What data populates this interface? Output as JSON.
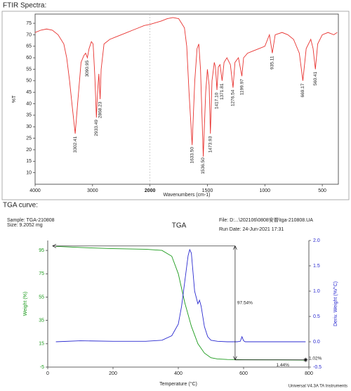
{
  "chart_data": [
    {
      "type": "line",
      "heading": "FTIR Spectra:",
      "xlabel": "Wavenumbers (cm-1)",
      "ylabel": "%T",
      "xlim": [
        4000,
        360
      ],
      "x_expand_below": 2000,
      "x_expand_factor": 2,
      "xticks": [
        4000,
        3000,
        2000,
        1500,
        1000,
        500
      ],
      "ylim": [
        5,
        79
      ],
      "yticks": [
        10,
        15,
        20,
        25,
        30,
        35,
        40,
        45,
        50,
        55,
        60,
        65,
        70,
        75
      ],
      "series": [
        {
          "color": "#e8322f",
          "x": [
            4000,
            3900,
            3800,
            3700,
            3600,
            3500,
            3450,
            3400,
            3350,
            3302,
            3260,
            3200,
            3150,
            3120,
            3090,
            3060,
            3020,
            2990,
            2960,
            2933,
            2910,
            2890,
            2868,
            2850,
            2800,
            2700,
            2600,
            2500,
            2400,
            2300,
            2200,
            2100,
            2000,
            1900,
            1850,
            1800,
            1750,
            1700,
            1680,
            1660,
            1633,
            1610,
            1590,
            1575,
            1560,
            1536,
            1515,
            1500,
            1485,
            1474,
            1460,
            1440,
            1430,
            1417,
            1405,
            1390,
            1372,
            1355,
            1330,
            1300,
            1277,
            1260,
            1230,
            1200,
            1185,
            1150,
            1100,
            1050,
            1000,
            960,
            935,
            910,
            850,
            800,
            750,
            700,
            669,
            640,
            600,
            580,
            560,
            540,
            500,
            450,
            400,
            370
          ],
          "values": [
            71,
            72,
            72.5,
            72,
            70,
            66,
            60,
            50,
            38,
            27,
            40,
            58,
            61,
            62,
            60,
            64,
            67,
            66,
            52,
            34,
            46,
            53,
            42,
            55,
            66,
            68,
            69,
            70,
            71,
            72,
            73,
            74,
            74.5,
            76,
            77,
            77.5,
            77,
            73,
            65,
            45,
            22,
            50,
            64,
            66,
            55,
            17,
            45,
            55,
            48,
            27,
            50,
            58,
            56,
            46,
            56,
            57,
            50,
            58,
            60,
            57,
            47,
            58,
            60,
            52,
            60,
            62,
            63,
            64,
            65,
            70,
            62,
            70,
            71,
            70,
            68,
            62,
            50,
            64,
            68,
            64,
            55,
            66,
            70,
            71,
            70,
            71
          ]
        }
      ],
      "peaks": [
        3302.41,
        3090.95,
        2933.49,
        2868.23,
        {
          "value": 1633.5,
          "label": "1633.50"
        },
        {
          "value": 1536.5,
          "label": "1536.50"
        },
        1473.93,
        {
          "value": 1417.1,
          "label": "1417.10"
        },
        1371.81,
        1276.54,
        1199.97,
        935.11,
        669.17,
        560.41
      ]
    },
    {
      "type": "line",
      "heading": "TGA curve:",
      "title": "TGA",
      "sample": "Sample: TGA-210808",
      "size": "Size: 9.2052 mg",
      "file": "File: D:...\\202106\\0808安普\\tga-210808.UA",
      "run_date": "Run Date: 24-Jun-2021 17:31",
      "footer": "Universal V4.3A TA Instruments",
      "xlabel": "Temperature (°C)",
      "ylabel": "Weight (%)",
      "y2label": "Deriv. Weight (%/°C)",
      "xlim": [
        0,
        800
      ],
      "xticks": [
        0,
        200,
        400,
        600,
        800
      ],
      "ylim": [
        -5,
        103.5
      ],
      "yticks": [
        -5,
        15,
        35,
        55,
        75,
        95
      ],
      "y2lim": [
        -0.5,
        2.0
      ],
      "y2ticks": [
        -0.5,
        {
          "value": 0,
          "label": "0.0"
        },
        0.5,
        {
          "value": 1,
          "label": "1.0"
        },
        1.5,
        {
          "value": 2,
          "label": "2.0"
        }
      ],
      "ycolor": "#1a9a1a",
      "y2color": "#2b2bd0",
      "series": [
        {
          "color": "#1a9a1a",
          "x": [
            25,
            100,
            200,
            300,
            350,
            380,
            400,
            420,
            440,
            460,
            480,
            500,
            520,
            550,
            600,
            700,
            790
          ],
          "values": [
            98.5,
            97.5,
            96.5,
            96,
            95,
            90,
            75,
            50,
            30,
            15,
            7,
            3,
            2,
            1.5,
            1.3,
            1.2,
            1.02
          ]
        },
        {
          "color": "#2b2bd0",
          "axis": "y2",
          "x": [
            25,
            100,
            200,
            300,
            350,
            380,
            400,
            410,
            420,
            430,
            435,
            440,
            450,
            460,
            465,
            470,
            480,
            490,
            500,
            520,
            550,
            580,
            590,
            595,
            600,
            605,
            620,
            700,
            790
          ],
          "values": [
            0,
            0.02,
            0.01,
            0.01,
            0.03,
            0.12,
            0.35,
            0.7,
            1.2,
            1.7,
            1.82,
            1.75,
            1.0,
            0.75,
            0.82,
            0.7,
            0.3,
            0.1,
            0.03,
            0.01,
            0,
            0,
            0.01,
            0.1,
            0.02,
            0,
            0,
            0,
            0
          ]
        }
      ],
      "bracket": {
        "x_start": 15,
        "x": 574,
        "x_end": 790,
        "top": 98.8,
        "bottom": 1.2,
        "label": "97.54%"
      },
      "annotations": [
        {
          "text": "1.02%",
          "x": 800,
          "y": 2.5
        },
        {
          "text": "1.44%",
          "x": 700,
          "y": -3.5
        }
      ]
    }
  ]
}
